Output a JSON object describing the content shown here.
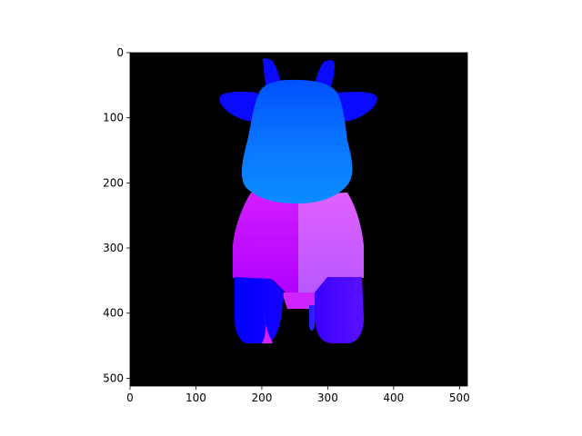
{
  "chart_data": {
    "type": "image",
    "title": "",
    "xlabel": "",
    "ylabel": "",
    "xlim": [
      0,
      512
    ],
    "ylim": [
      512,
      0
    ],
    "x_ticks": [
      0,
      100,
      200,
      300,
      400,
      500
    ],
    "y_ticks": [
      0,
      100,
      200,
      300,
      400,
      500
    ],
    "grid": false,
    "legend": "none",
    "background_color": "#000000",
    "image_content": "normal-map",
    "colors": {
      "head": "#0a6cff",
      "horns_ears": "#0a0aff",
      "body_left": "#c000ff",
      "body_right": "#d070ff",
      "legs": "#2a00ff"
    }
  }
}
